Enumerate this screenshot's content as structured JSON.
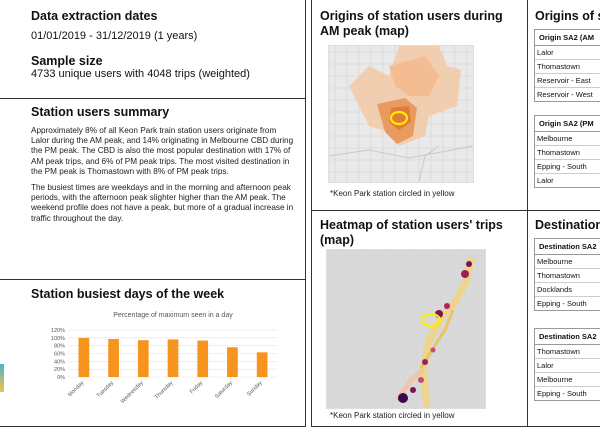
{
  "extraction": {
    "title": "Data extraction dates",
    "dates": "01/01/2019 - 31/12/2019 (1 years)",
    "sample_title": "Sample size",
    "sample_text": "4733 unique users with 4048 trips (weighted)"
  },
  "summary": {
    "title": "Station users summary",
    "para1": "Approximately 8% of all Keon Park train station users originate from Lalor during the AM peak, and 14% originating in Melbourne CBD during the PM peak. The CBD is also the most popular destination with 17% of AM peak trips, and 6% of PM peak trips. The most visited destination in the PM peak is Thomastown with 8% of PM peak trips.",
    "para2": "The busiest times are weekdays and in the morning and afternoon peak periods, with the afternoon peak slighter higher than the AM peak. The weekend profile does not have a peak, but more of a gradual increase in traffic throughout the day."
  },
  "busiest": {
    "title": "Station busiest days of the week"
  },
  "origins_map": {
    "title": "Origins of station users during AM peak (map)",
    "caption": "*Keon Park station circled in yellow"
  },
  "heatmap": {
    "title": "Heatmap of station users' trips (map)",
    "caption": "*Keon Park station circled in yellow"
  },
  "origins_table": {
    "title": "Origins of sta",
    "am_header": "Origin SA2 (AM",
    "am_rows": [
      "Lalor",
      "Thomastown",
      "Reservoir - East",
      "Reservoir - West"
    ],
    "pm_header": "Origin SA2 (PM",
    "pm_rows": [
      "Melbourne",
      "Thomastown",
      "Epping - South",
      "Lalor"
    ]
  },
  "dest_table": {
    "title": "Destinations",
    "am_header": "Destination SA2",
    "am_rows": [
      "Melbourne",
      "Thomastown",
      "Docklands",
      "Epping - South"
    ],
    "pm_header": "Destination SA2",
    "pm_rows": [
      "Thomastown",
      "Lalor",
      "Melbourne",
      "Epping - South"
    ]
  },
  "chart_data": {
    "type": "bar",
    "title": "Percentage of maximum seen in a day",
    "categories": [
      "Monday",
      "Tuesday",
      "Wednesday",
      "Thursday",
      "Friday",
      "Saturday",
      "Sunday"
    ],
    "values": [
      100,
      97,
      94,
      96,
      93,
      76,
      63
    ],
    "ylim": [
      0,
      120
    ],
    "yticks": [
      "0%",
      "20%",
      "40%",
      "60%",
      "80%",
      "100%",
      "120%"
    ],
    "bar_color": "#f7941d",
    "grid": true
  }
}
